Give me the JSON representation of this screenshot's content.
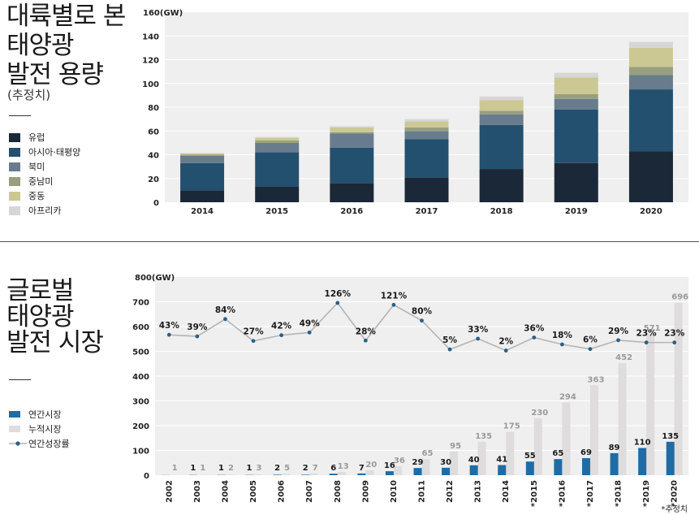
{
  "top": {
    "title_lines": [
      "대륙별로 본",
      "태양광",
      "발전 용량"
    ],
    "subtitle": "(추정치)"
  },
  "bottom": {
    "title_lines": [
      "글로벌",
      "태양광",
      "발전 시장"
    ]
  },
  "footnote": "*추정치",
  "chart_data": [
    {
      "type": "bar",
      "stacked": true,
      "ylabel": "160(GW)",
      "ylim": [
        0,
        160
      ],
      "yticks": [
        0,
        20,
        40,
        60,
        80,
        100,
        120,
        140
      ],
      "grid": true,
      "legend_position": "left",
      "categories": [
        "2014",
        "2015",
        "2016",
        "2017",
        "2018",
        "2019",
        "2020"
      ],
      "series": [
        {
          "name": "유럽",
          "color": "#1b2838",
          "values": [
            10,
            13,
            16,
            21,
            28,
            33,
            43
          ]
        },
        {
          "name": "아시아·태평양",
          "color": "#24506f",
          "values": [
            23,
            29,
            30,
            32,
            37,
            45,
            52
          ]
        },
        {
          "name": "북미",
          "color": "#687c8e",
          "values": [
            6,
            8,
            12,
            7,
            9,
            9,
            12
          ]
        },
        {
          "name": "중남미",
          "color": "#989f7e",
          "values": [
            1,
            2,
            1,
            3,
            3,
            4,
            7
          ]
        },
        {
          "name": "중동",
          "color": "#cbc894",
          "values": [
            1,
            2,
            4,
            5,
            9,
            14,
            16
          ]
        },
        {
          "name": "아프리카",
          "color": "#d6d6d8",
          "values": [
            0.5,
            1,
            1,
            2,
            3,
            4,
            5
          ]
        }
      ]
    },
    {
      "type": "bar",
      "ylabel": "800(GW)",
      "ylim": [
        0,
        800
      ],
      "yticks": [
        0,
        100,
        200,
        300,
        400,
        500,
        600,
        700
      ],
      "grid": true,
      "legend_position": "left",
      "categories": [
        "2002",
        "2003",
        "2004",
        "2005",
        "2006",
        "2007",
        "2008",
        "2009",
        "2010",
        "2011",
        "2012",
        "2013",
        "2014",
        "*2015",
        "*2016",
        "*2017",
        "*2018",
        "*2019",
        "*2020"
      ],
      "series": [
        {
          "name": "연간시장",
          "color": "#1f6ca4",
          "values": [
            0.5,
            1,
            1,
            1,
            2,
            2,
            6,
            7,
            16,
            29,
            30,
            40,
            41,
            55,
            65,
            69,
            89,
            110,
            135
          ],
          "labels": [
            "",
            "1",
            "1",
            "1",
            "2",
            "2",
            "6",
            "7",
            "16",
            "29",
            "30",
            "40",
            "41",
            "55",
            "65",
            "69",
            "89",
            "110",
            "135"
          ]
        },
        {
          "name": "누적시장",
          "color": "#dedcdc",
          "values": [
            1,
            1,
            2,
            3,
            5,
            7,
            13,
            20,
            36,
            65,
            95,
            135,
            175,
            230,
            294,
            363,
            452,
            571,
            696
          ],
          "labels": [
            "1",
            "1",
            "2",
            "3",
            "5",
            "7",
            "13",
            "20",
            "36",
            "65",
            "95",
            "135",
            "175",
            "230",
            "294",
            "363",
            "452",
            "571",
            "696"
          ]
        },
        {
          "name": "연간성장률",
          "type": "line",
          "color": "#b4b4b4",
          "marker_color": "#2a5f86",
          "values": [
            43,
            39,
            84,
            27,
            42,
            49,
            126,
            28,
            121,
            80,
            5,
            33,
            2,
            36,
            18,
            6,
            29,
            23,
            23
          ],
          "labels": [
            "43%",
            "39%",
            "84%",
            "27%",
            "42%",
            "49%",
            "126%",
            "28%",
            "121%",
            "80%",
            "5%",
            "33%",
            "2%",
            "36%",
            "18%",
            "6%",
            "29%",
            "23%",
            "23%"
          ]
        }
      ]
    }
  ]
}
